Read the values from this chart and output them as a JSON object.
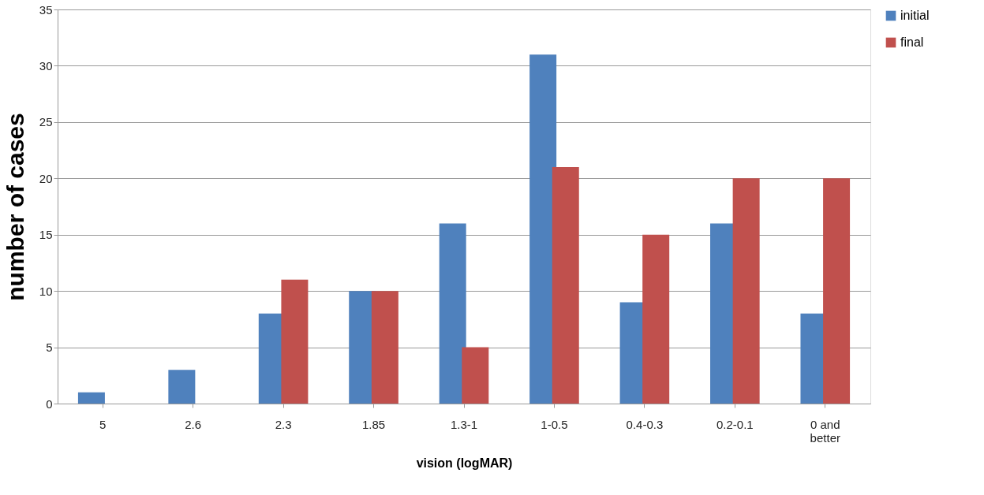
{
  "chart_data": {
    "type": "bar",
    "xlabel": "vision (logMAR)",
    "ylabel": "number of cases",
    "categories": [
      "5",
      "2.6",
      "2.3",
      "1.85",
      "1.3-1",
      "1-0.5",
      "0.4-0.3",
      "0.2-0.1",
      "0 and better"
    ],
    "series": [
      {
        "name": "initial",
        "color": "#4f81bd",
        "values": [
          1,
          3,
          8,
          10,
          16,
          31,
          9,
          16,
          8
        ]
      },
      {
        "name": "final",
        "color": "#c0504d",
        "values": [
          0,
          0,
          11,
          10,
          5,
          21,
          15,
          20,
          20
        ]
      }
    ],
    "ylim": [
      0,
      35
    ],
    "yticks": [
      0,
      5,
      10,
      15,
      20,
      25,
      30,
      35
    ],
    "grid": "y",
    "legend": "right"
  }
}
